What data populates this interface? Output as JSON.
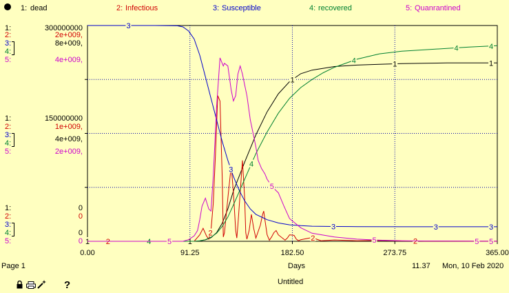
{
  "legend": [
    {
      "num": "1:",
      "name": "dead",
      "color": "#000000"
    },
    {
      "num": "2:",
      "name": "Infectious",
      "color": "#d00000"
    },
    {
      "num": "3:",
      "name": "Susceptible",
      "color": "#0000cc"
    },
    {
      "num": "4:",
      "name": "recovered",
      "color": "#008030"
    },
    {
      "num": "5:",
      "name": "Quanrantined",
      "color": "#cc00cc"
    }
  ],
  "scales": {
    "top": [
      "300000000",
      "2e+009,",
      "8e+009,",
      "",
      "4e+009,"
    ],
    "middle": [
      "150000000",
      "1e+009,",
      "4e+009,",
      "",
      "2e+009,"
    ],
    "bottom": [
      "0",
      "0",
      "",
      "0",
      "0"
    ]
  },
  "footer": {
    "page": "Page 1",
    "axis_title": "Days",
    "time_value": "11.37",
    "date": "Mon, 10 Feb 2020",
    "doc_title": "Untitled",
    "help": "?"
  },
  "chart_data": {
    "type": "line",
    "xlabel": "Days",
    "xlim": [
      0,
      365
    ],
    "x_ticks": [
      "0.00",
      "91.25",
      "182.50",
      "273.75",
      "365.00"
    ],
    "series": [
      {
        "name": "dead",
        "id": 1,
        "color": "#000000",
        "ymax": 300000000,
        "x": [
          0,
          80,
          95,
          100,
          105,
          110,
          115,
          120,
          125,
          130,
          140,
          150,
          160,
          170,
          180,
          190,
          200,
          220,
          240,
          260,
          280,
          300,
          320,
          340,
          365
        ],
        "y": [
          0,
          0,
          0,
          500000,
          2000000,
          5000000,
          12000000,
          25000000,
          45000000,
          70000000,
          110000000,
          148000000,
          180000000,
          205000000,
          222000000,
          233000000,
          238000000,
          243000000,
          245000000,
          246000000,
          247000000,
          247500000,
          248000000,
          248000000,
          248000000
        ]
      },
      {
        "name": "Infectious",
        "id": 2,
        "color": "#d00000",
        "ymax": 2000000000,
        "x": [
          0,
          80,
          95,
          100,
          103,
          106,
          108,
          110,
          112,
          114,
          116,
          118,
          120,
          121,
          122,
          125,
          128,
          130,
          132,
          133,
          134,
          136,
          138,
          140,
          141,
          142,
          144,
          146,
          148,
          150,
          154,
          156,
          157,
          158,
          160,
          162,
          164,
          166,
          168,
          170,
          176,
          178,
          180,
          184,
          186,
          188,
          190,
          200,
          204,
          208,
          220,
          240,
          260,
          280,
          300,
          330,
          365
        ],
        "y": [
          0,
          0,
          0,
          60000000,
          120000000,
          50000000,
          20000000,
          100000000,
          350000000,
          800000000,
          1350000000,
          1300000000,
          600000000,
          40000000,
          80000000,
          400000000,
          700000000,
          450000000,
          100000000,
          30000000,
          150000000,
          450000000,
          750000000,
          400000000,
          80000000,
          20000000,
          100000000,
          250000000,
          120000000,
          30000000,
          150000000,
          250000000,
          280000000,
          200000000,
          60000000,
          10000000,
          40000000,
          80000000,
          100000000,
          60000000,
          10000000,
          30000000,
          60000000,
          55000000,
          20000000,
          5000000,
          15000000,
          35000000,
          20000000,
          5000000,
          12000000,
          5000000,
          8000000,
          3000000,
          2000000,
          1000000,
          500000
        ]
      },
      {
        "name": "Susceptible",
        "id": 3,
        "color": "#0000cc",
        "ymax": 8000000000,
        "x": [
          0,
          60,
          80,
          85,
          90,
          95,
          100,
          105,
          110,
          115,
          120,
          125,
          130,
          135,
          140,
          145,
          150,
          160,
          170,
          180,
          190,
          200,
          220,
          240,
          280,
          320,
          365
        ],
        "y": [
          8000000000,
          8000000000,
          7990000000,
          7950000000,
          7800000000,
          7500000000,
          6900000000,
          6100000000,
          5300000000,
          4500000000,
          3700000000,
          3000000000,
          2400000000,
          1900000000,
          1500000000,
          1200000000,
          1000000000,
          800000000,
          680000000,
          610000000,
          580000000,
          560000000,
          550000000,
          545000000,
          540000000,
          540000000,
          540000000
        ]
      },
      {
        "name": "recovered",
        "id": 4,
        "color": "#008030",
        "ymax": 8000000000,
        "x": [
          0,
          80,
          95,
          100,
          105,
          110,
          115,
          120,
          125,
          130,
          140,
          150,
          160,
          170,
          180,
          190,
          200,
          210,
          220,
          240,
          260,
          280,
          300,
          320,
          340,
          365
        ],
        "y": [
          0,
          0,
          0,
          20000000,
          60000000,
          150000000,
          300000000,
          550000000,
          900000000,
          1350000000,
          2300000000,
          3250000000,
          4050000000,
          4750000000,
          5300000000,
          5700000000,
          6000000000,
          6250000000,
          6450000000,
          6750000000,
          6950000000,
          7050000000,
          7100000000,
          7150000000,
          7200000000,
          7250000000
        ]
      },
      {
        "name": "Quanrantined",
        "id": 5,
        "color": "#cc00cc",
        "ymax": 4000000000,
        "x": [
          0,
          85,
          90,
          95,
          98,
          100,
          102,
          105,
          108,
          110,
          112,
          115,
          118,
          120,
          121,
          122,
          125,
          128,
          130,
          132,
          134,
          136,
          138,
          140,
          142,
          145,
          148,
          150,
          152,
          155,
          158,
          160,
          165,
          170,
          175,
          180,
          190,
          200,
          220,
          240,
          260,
          280,
          300,
          340,
          365
        ],
        "y": [
          0,
          0,
          30000000,
          100000000,
          200000000,
          400000000,
          650000000,
          800000000,
          600000000,
          560000000,
          1200000000,
          2500000000,
          3400000000,
          3300000000,
          3250000000,
          3300000000,
          3250000000,
          2800000000,
          2600000000,
          2700000000,
          3100000000,
          3250000000,
          3100000000,
          2900000000,
          2700000000,
          2250000000,
          1950000000,
          1750000000,
          1500000000,
          1350000000,
          1250000000,
          1150000000,
          1000000000,
          900000000,
          650000000,
          420000000,
          250000000,
          150000000,
          80000000,
          40000000,
          20000000,
          10000000,
          5000000,
          2000000,
          1000000
        ]
      }
    ]
  }
}
